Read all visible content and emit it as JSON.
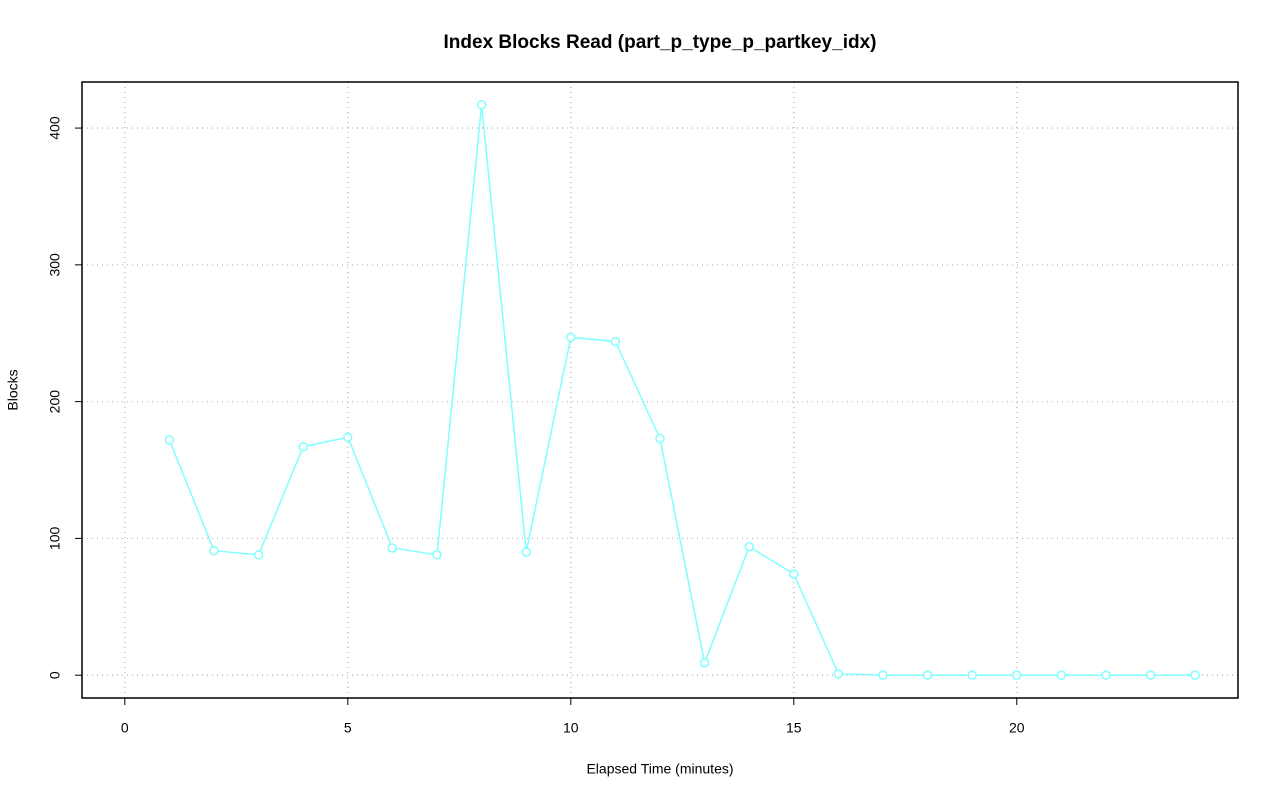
{
  "chart_data": {
    "type": "line",
    "title": "Index Blocks Read (part_p_type_p_partkey_idx)",
    "x_label": "Elapsed Time (minutes)",
    "y_label": "Blocks",
    "x": [
      1,
      2,
      3,
      4,
      5,
      6,
      7,
      8,
      9,
      10,
      11,
      12,
      13,
      14,
      15,
      16,
      17,
      18,
      19,
      20,
      21,
      22,
      23,
      24
    ],
    "series": [
      {
        "color": "#80ffff",
        "values": [
          172,
          91,
          88,
          167,
          174,
          93,
          88,
          417,
          90,
          247,
          244,
          173,
          9,
          94,
          74,
          1,
          0,
          0,
          0,
          0,
          0,
          0,
          0,
          0
        ]
      }
    ],
    "xlim": [
      -0.96,
      24.96
    ],
    "xticks": [
      0,
      5,
      10,
      15,
      20
    ],
    "ylim": [
      -16.68,
      433.68
    ],
    "yticks": [
      0,
      100,
      200,
      300,
      400
    ],
    "grid": true
  }
}
